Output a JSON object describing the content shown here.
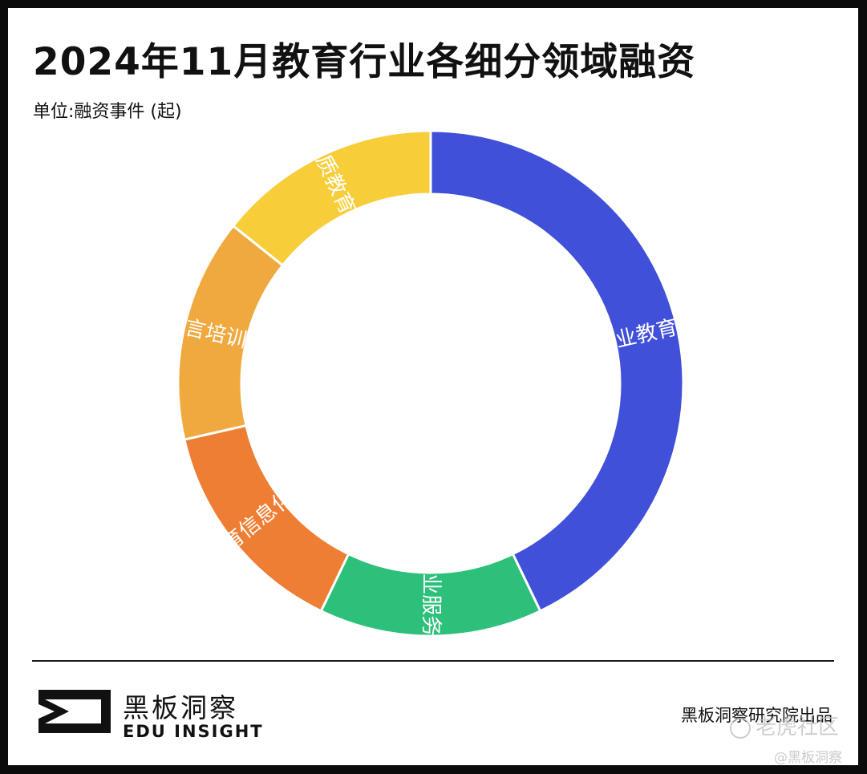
{
  "header": {
    "title": "2024年11月教育行业各细分领域融资",
    "unit": "单位:融资事件 (起)"
  },
  "chart_data": {
    "type": "pie",
    "style": "donut",
    "title": "2024年11月教育行业各细分领域融资",
    "unit": "单位:融资事件 (起)",
    "slices": [
      {
        "label": "职业教育",
        "value": 3,
        "color": "#4150D8"
      },
      {
        "label": "企业服务",
        "value": 1,
        "color": "#2CC07A"
      },
      {
        "label": "教育信息化",
        "value": 1,
        "color": "#EE7E33"
      },
      {
        "label": "语言培训",
        "value": 1,
        "color": "#F0A93E"
      },
      {
        "label": "素质教育",
        "value": 1,
        "color": "#F7CE3A"
      }
    ],
    "start_angle_deg": 0,
    "direction": "clockwise"
  },
  "footer": {
    "brand_cn": "黑板洞察",
    "brand_en": "EDU INSIGHT",
    "credit": "黑板洞察研究院出品"
  },
  "watermark": {
    "site": "老虎社区",
    "account": "@黑板洞察"
  }
}
